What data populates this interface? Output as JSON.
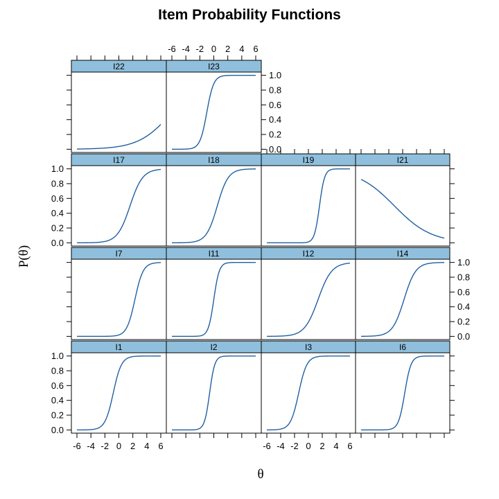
{
  "chart_data": {
    "type": "line",
    "title": "Item Probability Functions",
    "xlabel": "θ",
    "ylabel": "P(θ)",
    "xlim": [
      -6,
      6
    ],
    "ylim": [
      0,
      1
    ],
    "x_ticks": [
      "-6",
      "-4",
      "-2",
      "0",
      "2",
      "4",
      "6"
    ],
    "y_ticks": [
      "0.0",
      "0.2",
      "0.4",
      "0.6",
      "0.8",
      "1.0"
    ],
    "line_color": "#1f5fa0",
    "strip_color": "#8fbfdc",
    "layout": "4 columns x 4 rows, top row has 2 panels",
    "panels": [
      {
        "name": "I22",
        "a": 0.25,
        "b": 7.6
      },
      {
        "name": "I23",
        "a": 1.2,
        "b": -1.0
      },
      {
        "name": "I17",
        "a": 0.65,
        "b": 1.6
      },
      {
        "name": "I18",
        "a": 0.75,
        "b": 0.5
      },
      {
        "name": "I19",
        "a": 1.6,
        "b": 1.6
      },
      {
        "name": "I21",
        "a": -0.22,
        "b": -1.2
      },
      {
        "name": "I7",
        "a": 1.0,
        "b": 2.3
      },
      {
        "name": "I11",
        "a": 1.5,
        "b": 0.0
      },
      {
        "name": "I12",
        "a": 0.6,
        "b": 1.4
      },
      {
        "name": "I14",
        "a": 0.7,
        "b": 0.2
      },
      {
        "name": "I1",
        "a": 1.0,
        "b": -0.8
      },
      {
        "name": "I2",
        "a": 1.6,
        "b": -0.6
      },
      {
        "name": "I3",
        "a": 1.0,
        "b": -1.4
      },
      {
        "name": "I6",
        "a": 1.3,
        "b": 0.3
      }
    ]
  }
}
